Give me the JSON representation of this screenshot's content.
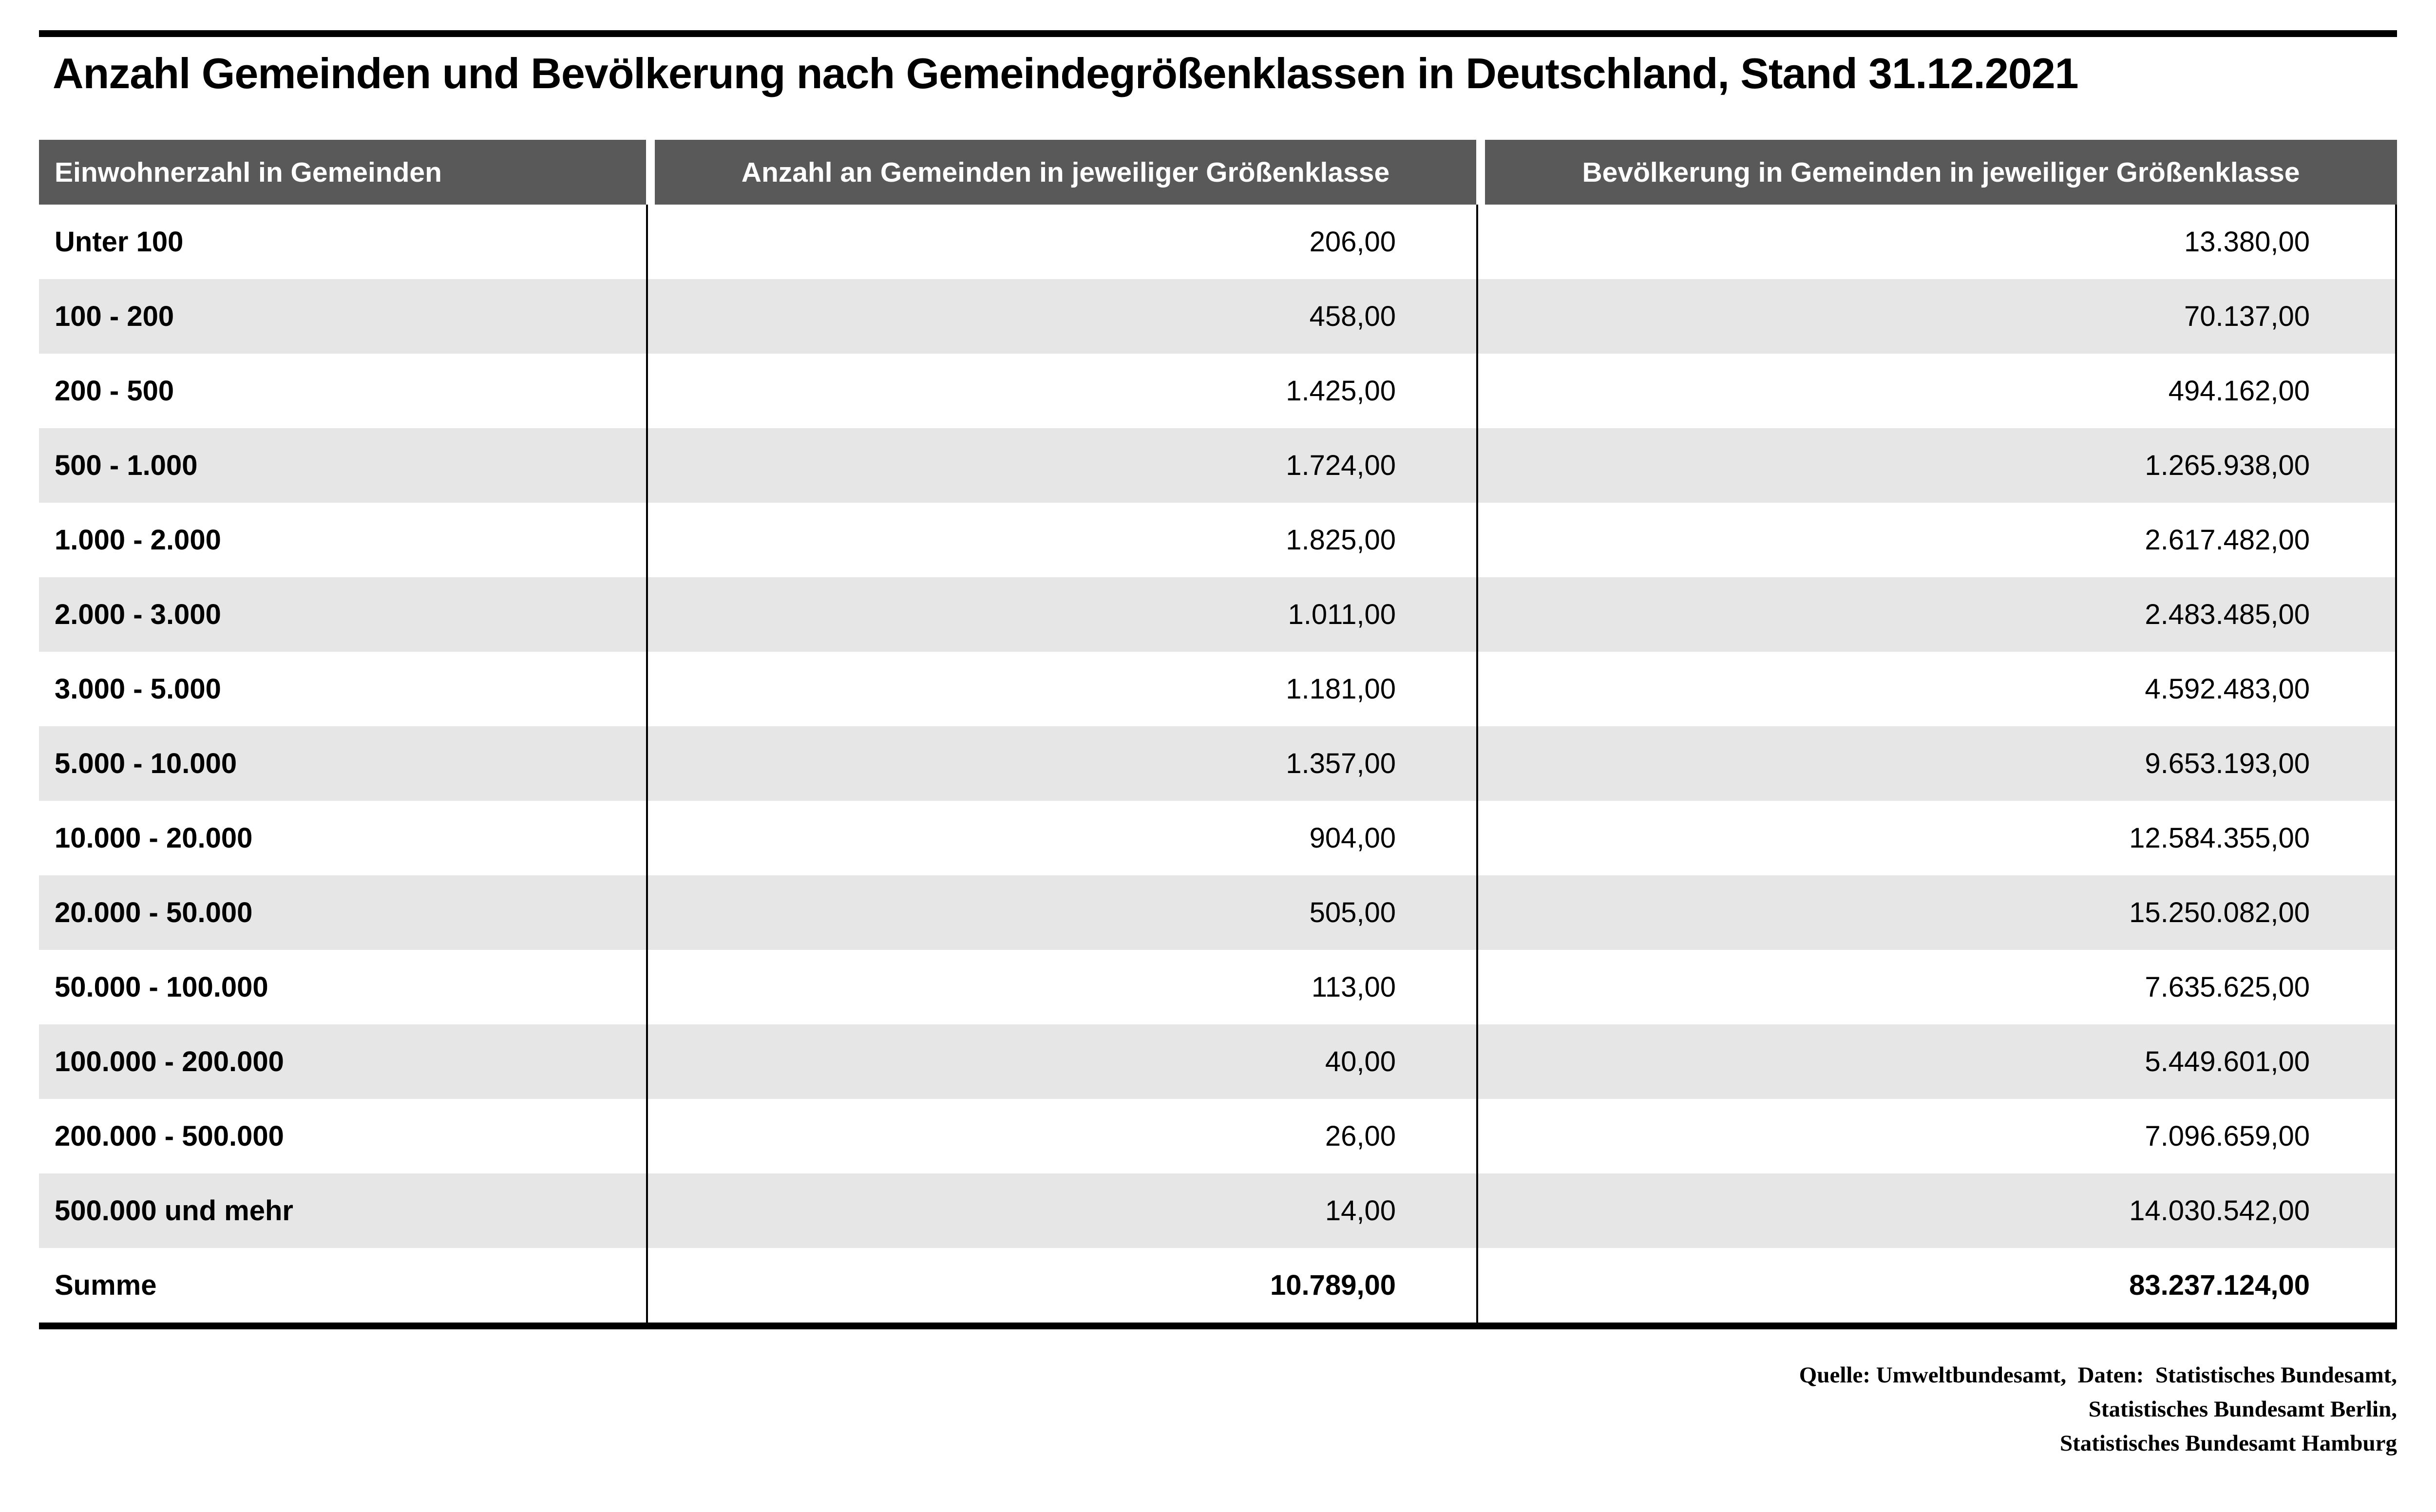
{
  "title": "Anzahl Gemeinden und Bevölkerung nach Gemeindegrößenklassen in Deutschland, Stand 31.12.2021",
  "colors": {
    "header_bg": "#595959",
    "header_text": "#ffffff",
    "row_stripe": "#e7e6e6",
    "rule": "#000000"
  },
  "table": {
    "columns": [
      "Einwohnerzahl in Gemeinden",
      "Anzahl an Gemeinden in jeweiliger Größenklasse",
      "Bevölkerung in Gemeinden in jeweiliger Größenklasse"
    ],
    "rows": [
      {
        "size_class": "Unter 100",
        "municipalities": "206,00",
        "population": "13.380,00"
      },
      {
        "size_class": "100 - 200",
        "municipalities": "458,00",
        "population": "70.137,00"
      },
      {
        "size_class": "200 - 500",
        "municipalities": "1.425,00",
        "population": "494.162,00"
      },
      {
        "size_class": "500 - 1.000",
        "municipalities": "1.724,00",
        "population": "1.265.938,00"
      },
      {
        "size_class": "1.000 - 2.000",
        "municipalities": "1.825,00",
        "population": "2.617.482,00"
      },
      {
        "size_class": "2.000 - 3.000",
        "municipalities": "1.011,00",
        "population": "2.483.485,00"
      },
      {
        "size_class": "3.000 - 5.000",
        "municipalities": "1.181,00",
        "population": "4.592.483,00"
      },
      {
        "size_class": "5.000 - 10.000",
        "municipalities": "1.357,00",
        "population": "9.653.193,00"
      },
      {
        "size_class": "10.000 - 20.000",
        "municipalities": "904,00",
        "population": "12.584.355,00"
      },
      {
        "size_class": "20.000 - 50.000",
        "municipalities": "505,00",
        "population": "15.250.082,00"
      },
      {
        "size_class": "50.000 - 100.000",
        "municipalities": "113,00",
        "population": "7.635.625,00"
      },
      {
        "size_class": "100.000 - 200.000",
        "municipalities": "40,00",
        "population": "5.449.601,00"
      },
      {
        "size_class": "200.000 - 500.000",
        "municipalities": "26,00",
        "population": "7.096.659,00"
      },
      {
        "size_class": "500.000 und mehr",
        "municipalities": "14,00",
        "population": "14.030.542,00"
      }
    ],
    "total_row": {
      "size_class": "Summe",
      "municipalities": "10.789,00",
      "population": "83.237.124,00"
    }
  },
  "source": {
    "line1": "Quelle: Umweltbundesamt,  Daten:  Statistisches Bundesamt,",
    "line2": "Statistisches Bundesamt Berlin,",
    "line3": "Statistisches Bundesamt Hamburg"
  },
  "chart_data": {
    "type": "table",
    "title": "Anzahl Gemeinden und Bevölkerung nach Gemeindegrößenklassen in Deutschland, Stand 31.12.2021",
    "categories": [
      "Unter 100",
      "100 - 200",
      "200 - 500",
      "500 - 1.000",
      "1.000 - 2.000",
      "2.000 - 3.000",
      "3.000 - 5.000",
      "5.000 - 10.000",
      "10.000 - 20.000",
      "20.000 - 50.000",
      "50.000 - 100.000",
      "100.000 - 200.000",
      "200.000 - 500.000",
      "500.000 und mehr"
    ],
    "series": [
      {
        "name": "Anzahl an Gemeinden in jeweiliger Größenklasse",
        "values": [
          206,
          458,
          1425,
          1724,
          1825,
          1011,
          1181,
          1357,
          904,
          505,
          113,
          40,
          26,
          14
        ],
        "total": 10789
      },
      {
        "name": "Bevölkerung in Gemeinden in jeweiliger Größenklasse",
        "values": [
          13380,
          70137,
          494162,
          1265938,
          2617482,
          2483485,
          4592483,
          9653193,
          12584355,
          15250082,
          7635625,
          5449601,
          7096659,
          14030542
        ],
        "total": 83237124
      }
    ],
    "source": "Quelle: Umweltbundesamt, Daten: Statistisches Bundesamt, Statistisches Bundesamt Berlin, Statistisches Bundesamt Hamburg"
  }
}
